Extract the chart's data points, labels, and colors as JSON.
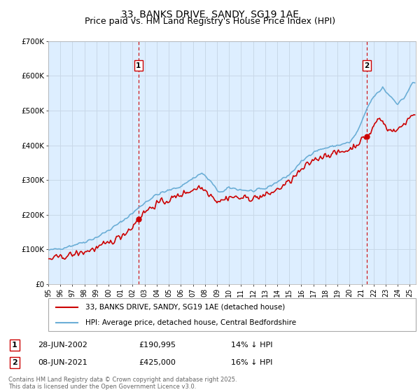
{
  "title": "33, BANKS DRIVE, SANDY, SG19 1AE",
  "subtitle": "Price paid vs. HM Land Registry's House Price Index (HPI)",
  "title_fontsize": 10,
  "subtitle_fontsize": 9,
  "hpi_label": "HPI: Average price, detached house, Central Bedfordshire",
  "price_label": "33, BANKS DRIVE, SANDY, SG19 1AE (detached house)",
  "hpi_color": "#6baed6",
  "price_color": "#cc0000",
  "vline_color": "#cc0000",
  "bg_plot": "#ddeeff",
  "xlim_start": 1995.0,
  "xlim_end": 2025.5,
  "ylim_min": 0,
  "ylim_max": 700000,
  "yticks": [
    0,
    100000,
    200000,
    300000,
    400000,
    500000,
    600000,
    700000
  ],
  "ytick_labels": [
    "£0",
    "£100K",
    "£200K",
    "£300K",
    "£400K",
    "£500K",
    "£600K",
    "£700K"
  ],
  "annotation1": {
    "x": 2002.49,
    "label": "1",
    "date": "28-JUN-2002",
    "price": "£190,995",
    "note": "14% ↓ HPI"
  },
  "annotation2": {
    "x": 2021.44,
    "label": "2",
    "date": "08-JUN-2021",
    "price": "£425,000",
    "note": "16% ↓ HPI"
  },
  "footer": "Contains HM Land Registry data © Crown copyright and database right 2025.\nThis data is licensed under the Open Government Licence v3.0.",
  "bg_color": "#ffffff",
  "grid_color": "#c8d8e8",
  "legend_border_color": "#aaaaaa"
}
